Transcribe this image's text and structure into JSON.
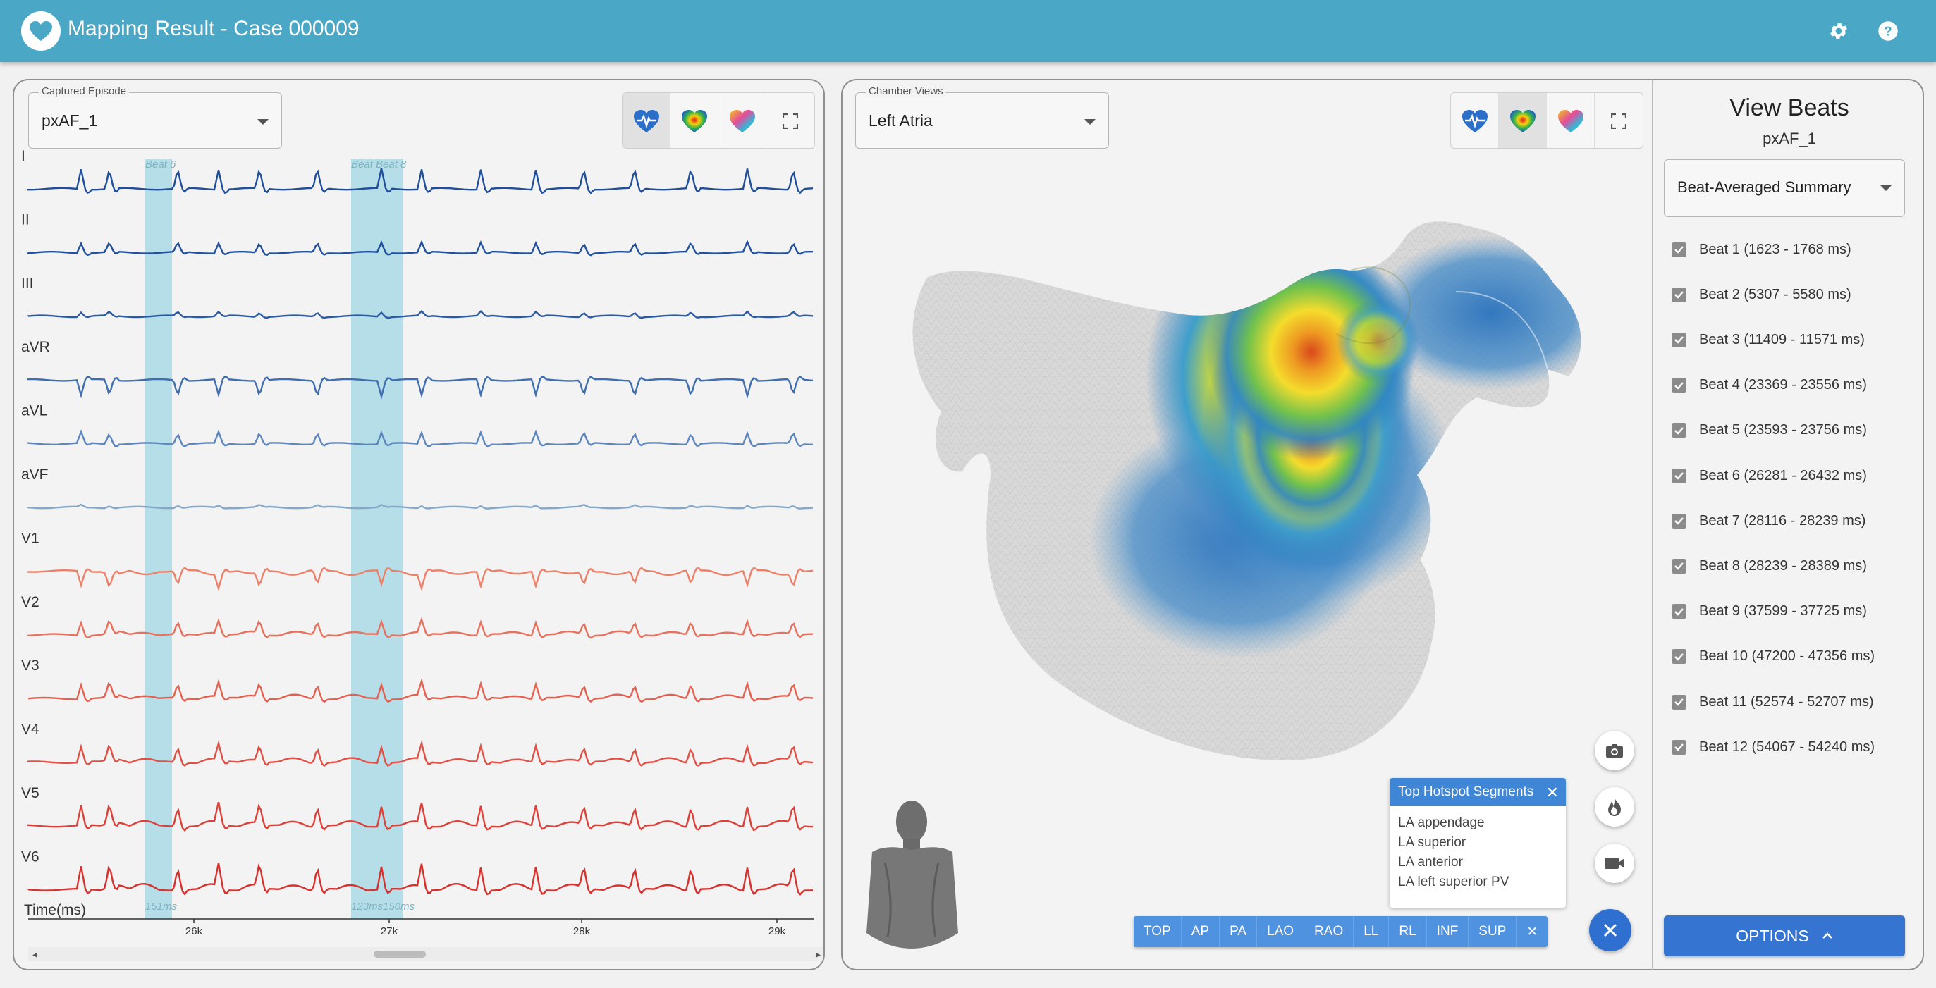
{
  "header": {
    "title": "Mapping Result - Case 000009",
    "settings_icon": "gear-icon",
    "help_icon": "help-icon",
    "bg_color": "#4aa7c6"
  },
  "episode": {
    "legend": "Captured Episode",
    "value": "pxAF_1"
  },
  "view_modes": [
    {
      "name": "ecg-heart-icon",
      "active": true
    },
    {
      "name": "heatmap-heart-icon",
      "active": false
    },
    {
      "name": "multicolor-heart-icon",
      "active": false
    },
    {
      "name": "fullscreen-icon",
      "active": false
    }
  ],
  "ecg": {
    "leads": [
      "I",
      "II",
      "III",
      "aVR",
      "aVL",
      "aVF",
      "V1",
      "V2",
      "V3",
      "V4",
      "V5",
      "V6"
    ],
    "lead_colors": [
      "#1f4f9c",
      "#20509e",
      "#2a5aa6",
      "#3e6db1",
      "#5c86bf",
      "#86a8c6",
      "#ee8068",
      "#e8705c",
      "#e66050",
      "#e25045",
      "#de4038",
      "#d8302c"
    ],
    "time_label": "Time(ms)",
    "time_ticks": [
      "26k",
      "27k",
      "28k",
      "29k"
    ],
    "beat_windows": [
      {
        "label": "Beat 6",
        "duration": "151ms"
      },
      {
        "label": "Beat Beat 8",
        "duration": "123ms150ms"
      }
    ]
  },
  "chamber": {
    "legend": "Chamber Views",
    "value": "Left Atria"
  },
  "chamber_view_modes": [
    {
      "name": "ecg-heart-icon",
      "active": false
    },
    {
      "name": "heatmap-heart-icon",
      "active": true
    },
    {
      "name": "multicolor-heart-icon",
      "active": false
    },
    {
      "name": "fullscreen-icon",
      "active": false
    }
  ],
  "hotspots": {
    "title": "Top Hotspot Segments",
    "items": [
      "LA appendage",
      "LA superior",
      "LA anterior",
      "LA left superior PV"
    ]
  },
  "view_buttons": [
    "TOP",
    "AP",
    "PA",
    "LAO",
    "RAO",
    "LL",
    "RL",
    "INF",
    "SUP",
    "✕"
  ],
  "side_buttons": [
    "camera-icon",
    "flame-icon",
    "video-camera-icon",
    "close-icon"
  ],
  "beats_panel": {
    "title": "View Beats",
    "subtitle": "pxAF_1",
    "summary_select": "Beat-Averaged Summary",
    "beats": [
      "Beat 1 (1623 - 1768 ms)",
      "Beat 2 (5307 - 5580 ms)",
      "Beat 3 (11409 - 11571 ms)",
      "Beat 4 (23369 - 23556 ms)",
      "Beat 5 (23593 - 23756 ms)",
      "Beat 6 (26281 - 26432 ms)",
      "Beat 7 (28116 - 28239 ms)",
      "Beat 8 (28239 - 28389 ms)",
      "Beat 9 (37599 - 37725 ms)",
      "Beat 10 (47200 - 47356 ms)",
      "Beat 11 (52574 - 52707 ms)",
      "Beat 12 (54067 - 54240 ms)"
    ],
    "options_label": "OPTIONS"
  },
  "colors": {
    "accent_blue": "#3574d0",
    "beat_window": "#a6d8e6"
  }
}
